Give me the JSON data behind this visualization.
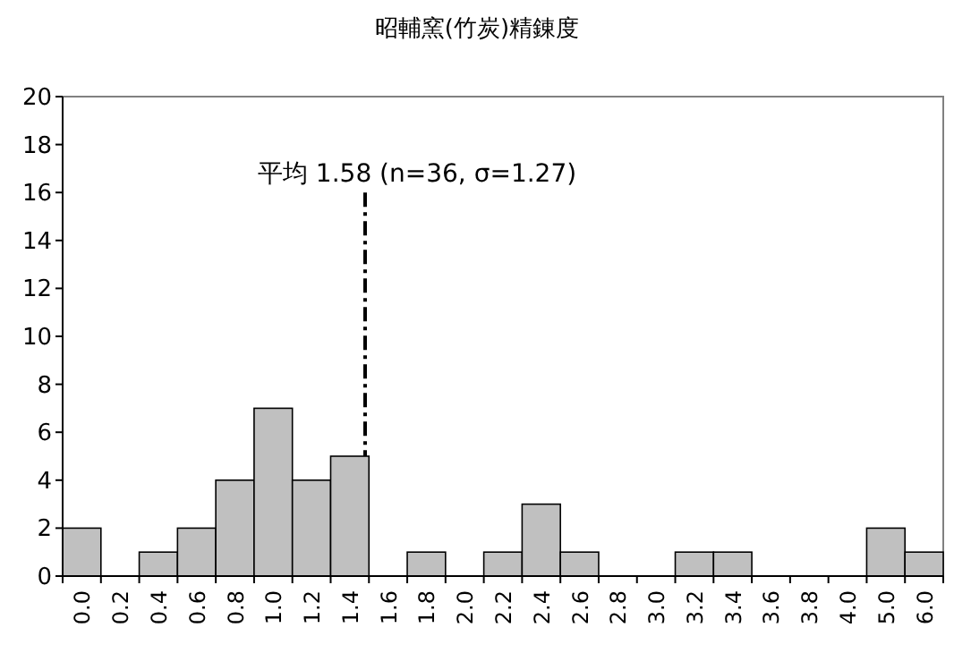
{
  "chart_data": {
    "type": "bar",
    "title": "昭輔窯(竹炭)精錬度",
    "categories": [
      "0.0",
      "0.2",
      "0.4",
      "0.6",
      "0.8",
      "1.0",
      "1.2",
      "1.4",
      "1.6",
      "1.8",
      "2.0",
      "2.2",
      "2.4",
      "2.6",
      "2.8",
      "3.0",
      "3.2",
      "3.4",
      "3.6",
      "3.8",
      "4.0",
      "5.0",
      "6.0"
    ],
    "values": [
      2,
      0,
      1,
      2,
      4,
      7,
      4,
      5,
      0,
      1,
      0,
      1,
      3,
      1,
      0,
      0,
      1,
      1,
      0,
      0,
      0,
      2,
      1
    ],
    "color": "#c0c0c0",
    "ylim": [
      0,
      20
    ],
    "yticks": [
      0,
      2,
      4,
      6,
      8,
      10,
      12,
      14,
      16,
      18,
      20
    ],
    "ref_lines": [
      {
        "axis": "x",
        "value": "1.4",
        "label": "平均 1.58 (n=36, σ=1.27)",
        "line_style": "dashdot",
        "color": "#000000"
      }
    ],
    "grid": false
  }
}
